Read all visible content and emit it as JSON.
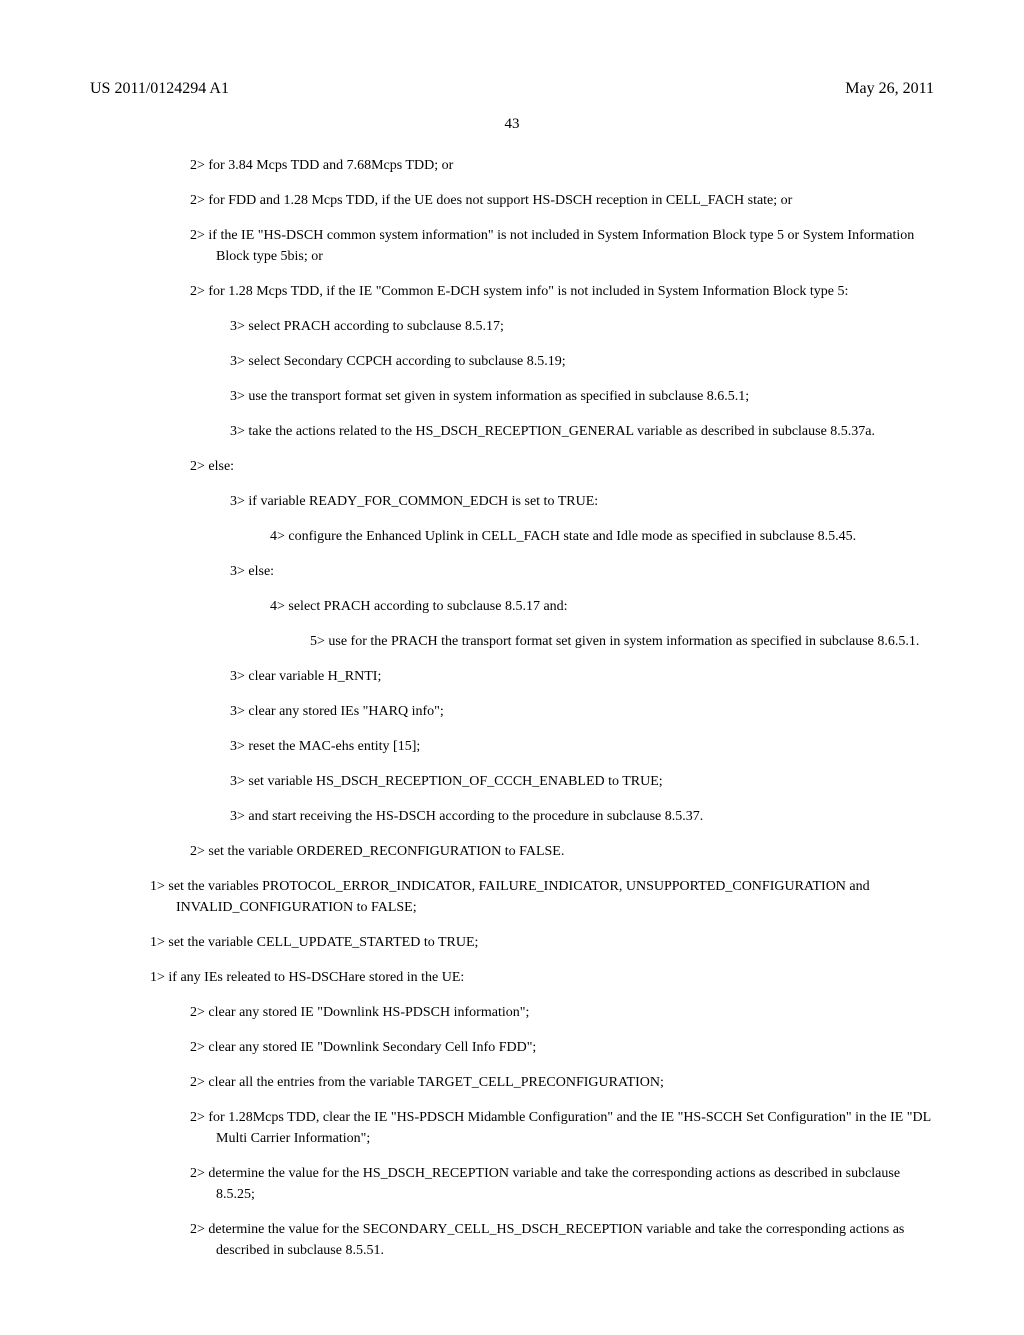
{
  "header": {
    "pub_number": "US 2011/0124294 A1",
    "pub_date": "May 26, 2011"
  },
  "page_number": "43",
  "paragraphs": [
    {
      "level": "l2",
      "text": "2> for 3.84 Mcps TDD and 7.68Mcps TDD; or"
    },
    {
      "level": "l2",
      "text": "2> for FDD and 1.28 Mcps TDD, if the UE does not support HS-DSCH reception in CELL_FACH state; or"
    },
    {
      "level": "l2",
      "text": "2> if the IE \"HS-DSCH common system information\" is not included in System Information Block type 5 or System Information Block type 5bis; or"
    },
    {
      "level": "l2",
      "text": "2> for 1.28 Mcps TDD, if the IE \"Common E-DCH system info\" is not included in System Information Block type 5:"
    },
    {
      "level": "l3",
      "text": "3> select PRACH according to subclause 8.5.17;"
    },
    {
      "level": "l3",
      "text": "3> select Secondary CCPCH according to subclause 8.5.19;"
    },
    {
      "level": "l3",
      "text": "3> use the transport format set given in system information as specified in subclause 8.6.5.1;"
    },
    {
      "level": "l3",
      "text": "3> take the actions related to the HS_DSCH_RECEPTION_GENERAL variable as described in subclause 8.5.37a."
    },
    {
      "level": "l2",
      "text": "2> else:"
    },
    {
      "level": "l3",
      "text": "3> if variable READY_FOR_COMMON_EDCH is set to TRUE:"
    },
    {
      "level": "l4",
      "text": "4> configure the Enhanced Uplink in CELL_FACH state and Idle mode as specified in subclause 8.5.45."
    },
    {
      "level": "l3",
      "text": "3> else:"
    },
    {
      "level": "l4",
      "text": "4> select PRACH according to subclause 8.5.17 and:"
    },
    {
      "level": "l5",
      "text": "5> use for the PRACH the transport format set given in system information as specified in subclause 8.6.5.1."
    },
    {
      "level": "l3",
      "text": "3> clear variable H_RNTI;"
    },
    {
      "level": "l3",
      "text": "3> clear any stored IEs \"HARQ info\";"
    },
    {
      "level": "l3",
      "text": "3> reset the MAC-ehs entity [15];"
    },
    {
      "level": "l3",
      "text": "3> set variable HS_DSCH_RECEPTION_OF_CCCH_ENABLED to TRUE;"
    },
    {
      "level": "l3",
      "text": "3> and start receiving the HS-DSCH according to the procedure in subclause 8.5.37."
    },
    {
      "level": "l2",
      "text": "2> set the variable ORDERED_RECONFIGURATION to FALSE."
    },
    {
      "level": "l1",
      "text": "1> set the variables PROTOCOL_ERROR_INDICATOR, FAILURE_INDICATOR, UNSUPPORTED_CONFIGURATION and INVALID_CONFIGURATION to FALSE;"
    },
    {
      "level": "l1",
      "text": "1> set the variable CELL_UPDATE_STARTED to TRUE;"
    },
    {
      "level": "l1",
      "text": "1> if any IEs releated to HS-DSCHare stored in the UE:"
    },
    {
      "level": "l2",
      "text": "2> clear any stored IE \"Downlink HS-PDSCH information\";"
    },
    {
      "level": "l2",
      "text": "2> clear any stored IE \"Downlink Secondary Cell Info FDD\";"
    },
    {
      "level": "l2",
      "text": "2> clear all the entries from the variable TARGET_CELL_PRECONFIGURATION;"
    },
    {
      "level": "l2",
      "text": "2> for 1.28Mcps TDD, clear the IE \"HS-PDSCH Midamble Configuration\" and the IE \"HS-SCCH Set Configuration\" in the IE \"DL Multi Carrier Information\";"
    },
    {
      "level": "l2",
      "text": "2> determine the value for the HS_DSCH_RECEPTION variable and take the corresponding actions as described in subclause 8.5.25;"
    },
    {
      "level": "l2",
      "text": "2> determine the value for the SECONDARY_CELL_HS_DSCH_RECEPTION variable and take the corresponding actions as described in subclause 8.5.51."
    }
  ]
}
